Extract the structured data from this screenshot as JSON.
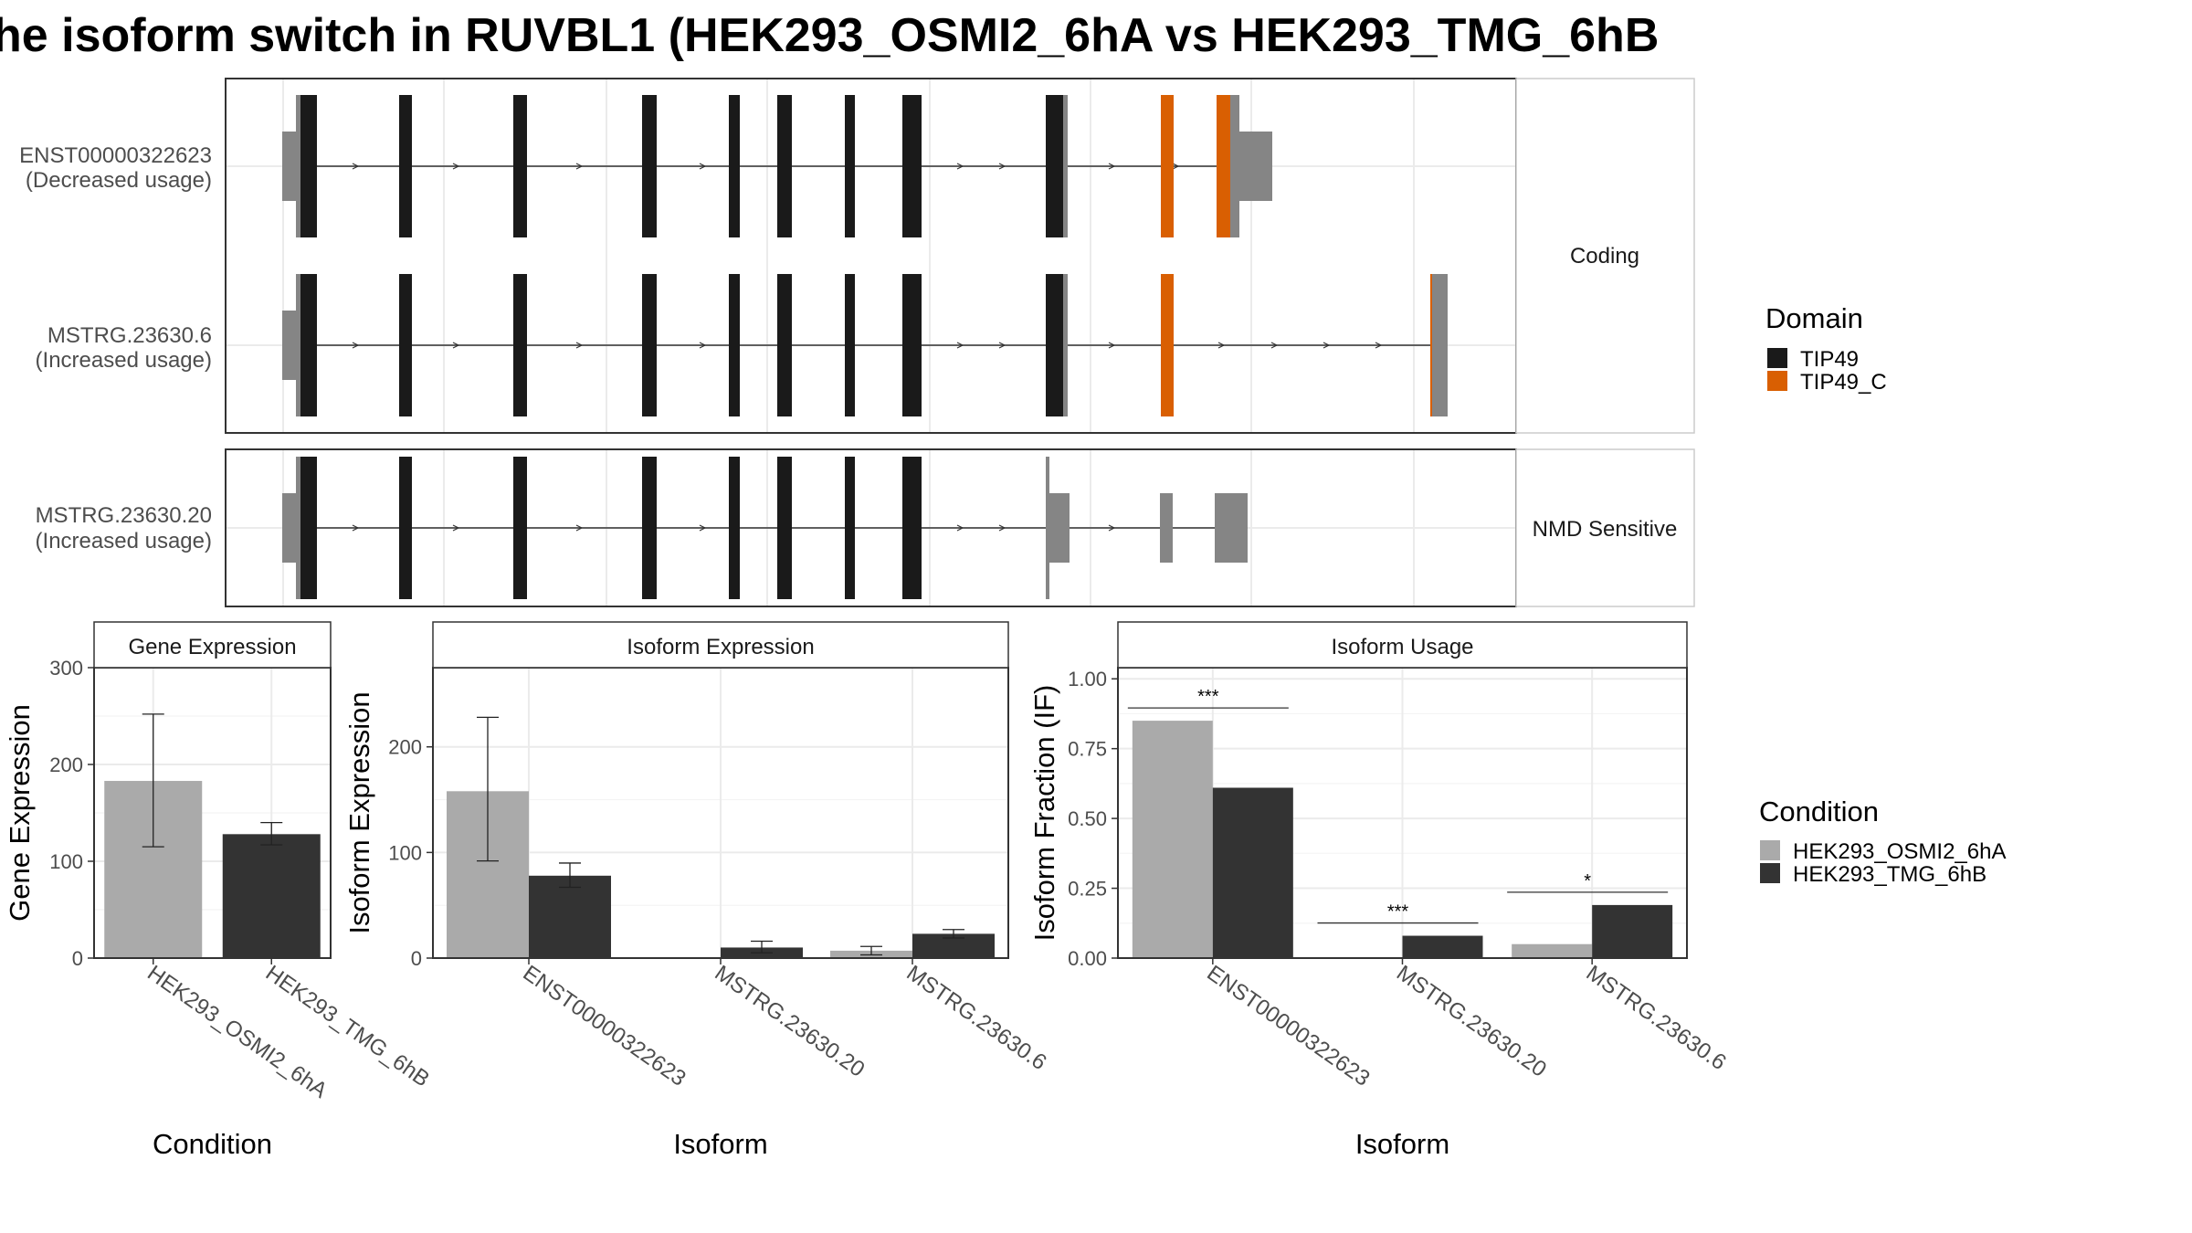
{
  "title": "he isoform switch in RUVBL1 (HEK293_OSMI2_6hA vs HEK293_TMG_6hB",
  "colors": {
    "utr": "#858585",
    "tip49": "#1a1a1a",
    "tip49_c": "#d95f02",
    "cond_a": "#aaaaaa",
    "cond_b": "#333333"
  },
  "structure": {
    "facets": [
      {
        "label": "Coding",
        "transcripts": [
          {
            "id": "ENST00000322623",
            "usage": "(Decreased usage)"
          },
          {
            "id": "MSTRG.23630.6",
            "usage": "(Increased usage)"
          }
        ]
      },
      {
        "label": "NMD Sensitive",
        "transcripts": [
          {
            "id": "MSTRG.23630.20",
            "usage": "(Increased usage)"
          }
        ]
      }
    ],
    "legend_title": "Domain",
    "legend_items": [
      {
        "label": "TIP49",
        "color": "#1a1a1a"
      },
      {
        "label": "TIP49_C",
        "color": "#d95f02"
      }
    ]
  },
  "condition_legend": {
    "title": "Condition",
    "items": [
      {
        "label": "HEK293_OSMI2_6hA",
        "color": "#aaaaaa"
      },
      {
        "label": "HEK293_TMG_6hB",
        "color": "#333333"
      }
    ]
  },
  "chart_data": [
    {
      "type": "bar",
      "title": "Gene Expression",
      "xlabel": "Condition",
      "ylabel": "Gene Expression",
      "categories": [
        "HEK293_OSMI2_6hA",
        "HEK293_TMG_6hB"
      ],
      "values": [
        183,
        128
      ],
      "error": [
        [
          115,
          252
        ],
        [
          117,
          140
        ]
      ],
      "ylim": [
        0,
        300
      ],
      "yticks": [
        0,
        100,
        200,
        300
      ],
      "ytick_labels": [
        "0",
        "100",
        "200",
        "300"
      ]
    },
    {
      "type": "bar",
      "title": "Isoform Expression",
      "xlabel": "Isoform",
      "ylabel": "Isoform Expression",
      "categories": [
        "ENST00000322623",
        "MSTRG.23630.20",
        "MSTRG.23630.6"
      ],
      "series": [
        {
          "name": "HEK293_OSMI2_6hA",
          "values": [
            158,
            0,
            7
          ],
          "error": [
            [
              92,
              228
            ],
            [
              0,
              0
            ],
            [
              3,
              11
            ]
          ]
        },
        {
          "name": "HEK293_TMG_6hB",
          "values": [
            78,
            10,
            23
          ],
          "error": [
            [
              67,
              90
            ],
            [
              5,
              16
            ],
            [
              19,
              27
            ]
          ]
        }
      ],
      "ylim": [
        0,
        275
      ],
      "yticks": [
        0,
        100,
        200
      ],
      "ytick_labels": [
        "0",
        "100",
        "200"
      ]
    },
    {
      "type": "bar",
      "title": "Isoform Usage",
      "xlabel": "Isoform",
      "ylabel": "Isoform Fraction (IF)",
      "categories": [
        "ENST00000322623",
        "MSTRG.23630.20",
        "MSTRG.23630.6"
      ],
      "series": [
        {
          "name": "HEK293_OSMI2_6hA",
          "values": [
            0.85,
            0.0,
            0.05
          ]
        },
        {
          "name": "HEK293_TMG_6hB",
          "values": [
            0.61,
            0.08,
            0.19
          ]
        }
      ],
      "significance": [
        "***",
        "***",
        "*"
      ],
      "ylim": [
        0,
        1.04
      ],
      "yticks": [
        0,
        0.25,
        0.5,
        0.75,
        1.0
      ],
      "ytick_labels": [
        "0.00",
        "0.25",
        "0.50",
        "0.75",
        "1.00"
      ]
    }
  ]
}
